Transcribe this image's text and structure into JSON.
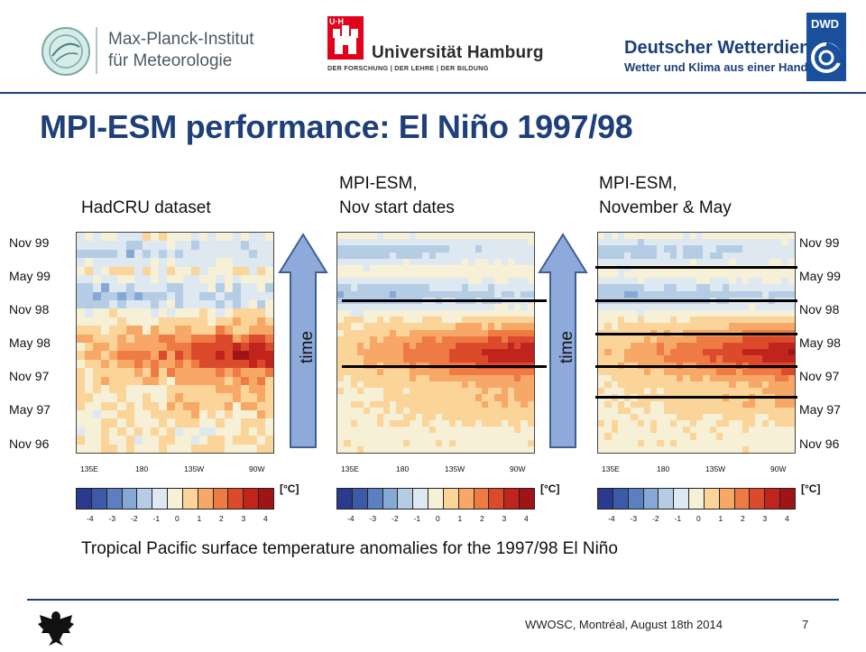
{
  "header": {
    "mpi_line1": "Max-Planck-Institut",
    "mpi_line2": "für Meteorologie",
    "uhh_mark": "U·H",
    "uhh_name": "Universität Hamburg",
    "uhh_sub": "DER FORSCHUNG | DER LEHRE | DER BILDUNG",
    "dwd_name": "Deutscher Wetterdienst",
    "dwd_sub": "Wetter und Klima aus einer Hand",
    "dwd_badge": "DWD"
  },
  "title": "MPI-ESM performance: El Niño 1997/98",
  "panels": [
    {
      "title_line1": "",
      "title_line2": "HadCRU dataset"
    },
    {
      "title_line1": "MPI-ESM,",
      "title_line2": "Nov start dates"
    },
    {
      "title_line1": "MPI-ESM,",
      "title_line2": "November & May"
    }
  ],
  "y_labels": [
    "Nov 99",
    "May 99",
    "Nov 98",
    "May 98",
    "Nov 97",
    "May 97",
    "Nov 96"
  ],
  "x_labels": [
    "135E",
    "180",
    "135W",
    "90W"
  ],
  "arrow_label": "time",
  "colorbar": {
    "labels": [
      "-4",
      "-3",
      "-2",
      "-1",
      "0",
      "1",
      "2",
      "3",
      "4"
    ],
    "unit": "[°C]",
    "colors": [
      "#2a3a8f",
      "#3d5aa8",
      "#5b7fc0",
      "#86a8d4",
      "#b4cce4",
      "#dde8f0",
      "#f6f0d6",
      "#fbd49a",
      "#f8a866",
      "#ee7a44",
      "#dc4a2c",
      "#c0241c",
      "#a01418"
    ]
  },
  "caption": "Tropical Pacific surface temperature anomalies for the 1997/98 El Niño",
  "footer": "WWOSC, Montréal, August 18th  2014",
  "page_number": "7",
  "accent_color": "#1f3f7a"
}
